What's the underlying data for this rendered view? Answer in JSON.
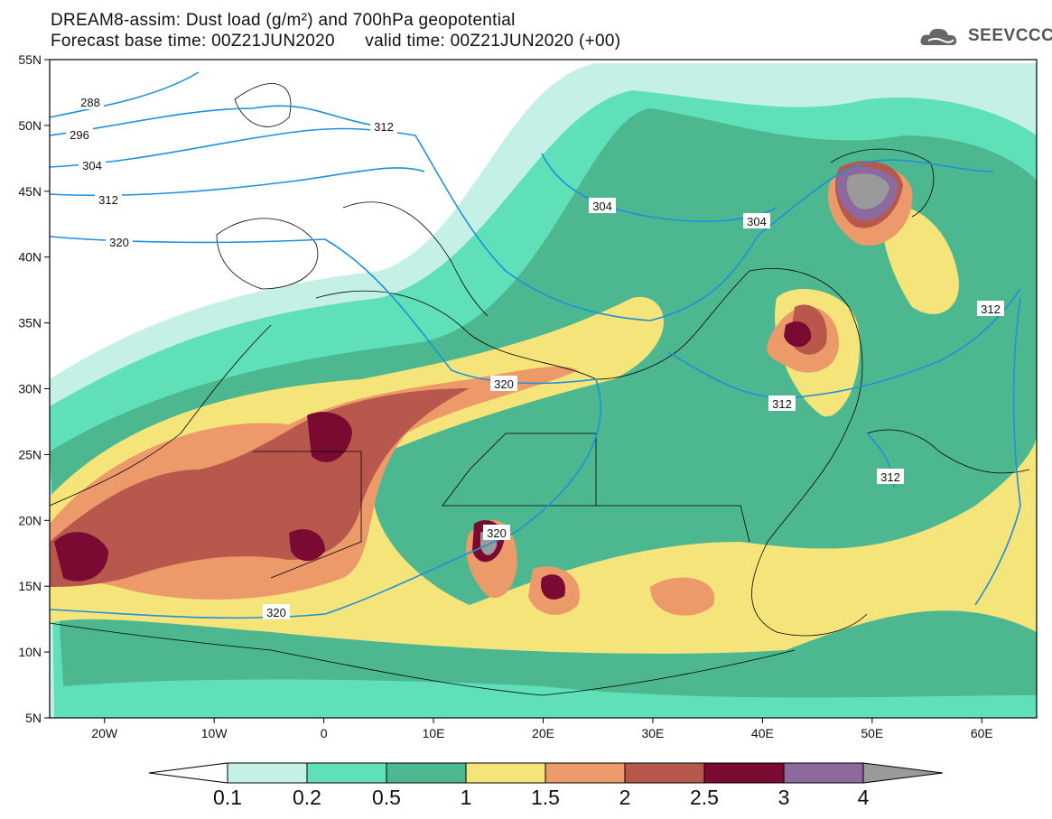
{
  "title": {
    "line1": "DREAM8-assim: Dust load (g/m²) and 700hPa geopotential",
    "line2": "Forecast base time: 00Z21JUN2020      valid time: 00Z21JUN2020 (+00)"
  },
  "logo": {
    "text": "SEEVCCC",
    "icon": "cloud-icon"
  },
  "map": {
    "lon_range": [
      -25,
      65
    ],
    "lat_range": [
      5,
      55
    ],
    "lat_labels": [
      "55N",
      "50N",
      "45N",
      "40N",
      "35N",
      "30N",
      "25N",
      "20N",
      "15N",
      "10N",
      "5N"
    ],
    "lon_labels": [
      "20W",
      "10W",
      "0",
      "10E",
      "20E",
      "30E",
      "40E",
      "50E",
      "60E"
    ],
    "contour_color": "#1e90dc",
    "contour_labels": [
      "288",
      "296",
      "304",
      "312",
      "320",
      "312",
      "320",
      "304",
      "304",
      "312",
      "312",
      "312",
      "320",
      "320"
    ]
  },
  "colorbar": {
    "labels": [
      "0.1",
      "0.2",
      "0.5",
      "1",
      "1.5",
      "2",
      "2.5",
      "3",
      "4"
    ],
    "colors": [
      "#c5f0e6",
      "#5fe0b8",
      "#4db890",
      "#f4e47a",
      "#ec9a6a",
      "#b8574c",
      "#7a0a32",
      "#8c6a9e",
      "#9a9a9a"
    ]
  }
}
